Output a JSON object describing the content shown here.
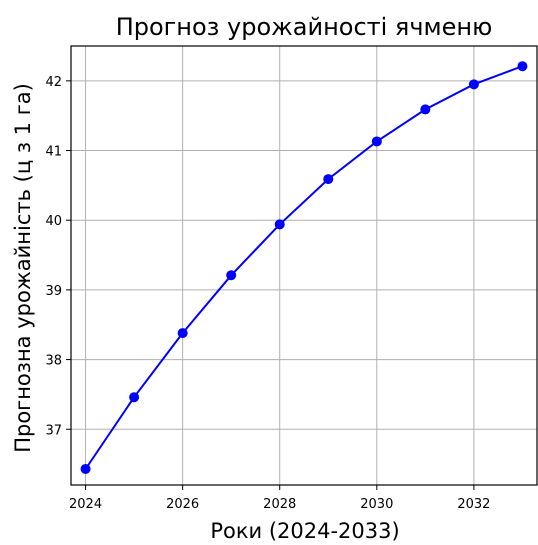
{
  "chart_data": {
    "type": "line",
    "title": "Прогноз урожайності ячменю",
    "xlabel": "Роки (2024-2033)",
    "ylabel": "Прогнозна урожайність (ц з 1 га)",
    "x": [
      2024,
      2025,
      2026,
      2027,
      2028,
      2029,
      2030,
      2031,
      2032,
      2033
    ],
    "series": [
      {
        "values": [
          36.43,
          37.46,
          38.38,
          39.21,
          39.94,
          40.59,
          41.13,
          41.59,
          41.95,
          42.21
        ]
      }
    ],
    "xlim": [
      2023.7,
      2033.3
    ],
    "ylim": [
      36.2,
      42.5
    ],
    "xticks": [
      2024,
      2026,
      2028,
      2030,
      2032
    ],
    "yticks": [
      37,
      38,
      39,
      40,
      41,
      42
    ],
    "grid": true,
    "legend": "none",
    "line_color": "#0000ff",
    "marker": "circle"
  }
}
